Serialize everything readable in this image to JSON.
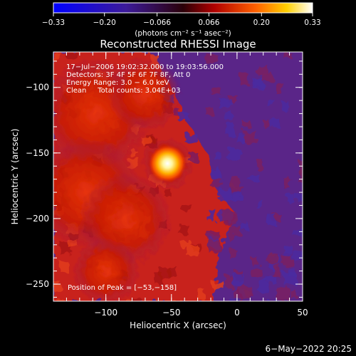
{
  "chart_data": {
    "type": "heatmap",
    "title": "Reconstructed RHESSI Image",
    "xlabel": "Heliocentric X (arcsec)",
    "ylabel": "Heliocentric Y (arcsec)",
    "xlim": [
      -140,
      50
    ],
    "ylim": [
      -263,
      -73
    ],
    "x_ticks": [
      -100,
      -50,
      0,
      50
    ],
    "y_ticks": [
      -100,
      -150,
      -200,
      -250
    ],
    "x_tick_labels": [
      "−100",
      "−50",
      "0",
      "50"
    ],
    "y_tick_labels": [
      "−100",
      "−150",
      "−200",
      "−250"
    ],
    "colorbar": {
      "min": -0.33,
      "max": 0.33,
      "ticks": [
        -0.33,
        -0.2,
        -0.066,
        0.066,
        0.2,
        0.33
      ],
      "tick_labels": [
        "−0.33",
        "−0.20",
        "−0.066",
        "0.066",
        "0.20",
        "0.33"
      ],
      "unit_label": "(photons cm⁻² s⁻¹ asec⁻²)"
    },
    "annotations": [
      "17−Jul−2006 19:02:32.000 to 19:03:56.000",
      "Detectors: 3F 4F 5F 6F 7F 8F, Att 0",
      "Energy Range: 3.0 − 6.0 keV",
      "Clean     Total counts: 3.04E+03"
    ],
    "peak_label": "Position of Peak = [−53,−158]",
    "peak": [
      -53,
      -158
    ],
    "peak_value": 0.33,
    "footer_date": "6−May−2022 20:25",
    "grid": false,
    "features": [
      {
        "x": -53,
        "y": -158,
        "sigma": 6,
        "value": 0.33
      },
      {
        "x": -53,
        "y": -158,
        "sigma": 14,
        "value": 0.16
      },
      {
        "x": -108,
        "y": -120,
        "sigma": 30,
        "value": 0.1
      },
      {
        "x": -115,
        "y": -180,
        "sigma": 30,
        "value": 0.1
      },
      {
        "x": -85,
        "y": -200,
        "sigma": 25,
        "value": 0.07
      },
      {
        "x": -100,
        "y": -240,
        "sigma": 18,
        "value": 0.06
      },
      {
        "x": -70,
        "y": -105,
        "sigma": 20,
        "value": 0.06
      }
    ]
  }
}
